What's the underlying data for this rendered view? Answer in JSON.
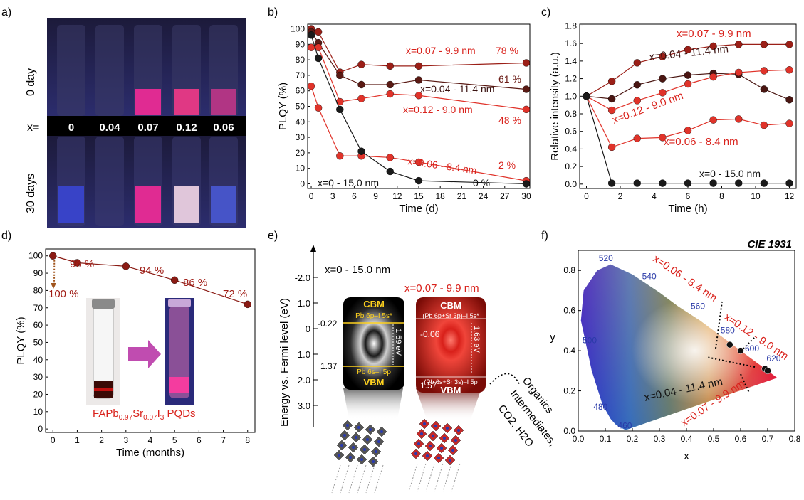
{
  "panels": {
    "a": "a)",
    "b": "b)",
    "c": "c)",
    "d": "d)",
    "e": "e)",
    "f": "f)"
  },
  "panel_a": {
    "row_top": "0 day",
    "row_bottom": "30 days",
    "x_label": "x=",
    "x_values": [
      "0",
      "0.04",
      "0.07",
      "0.12",
      "0.06"
    ]
  },
  "chart_data": [
    {
      "id": "b",
      "type": "line",
      "xlabel": "Time (d)",
      "ylabel": "PLQY (%)",
      "xlim": [
        -0.5,
        30.5
      ],
      "ylim": [
        -3,
        103
      ],
      "xticks": [
        0,
        3,
        6,
        9,
        12,
        15,
        18,
        21,
        24,
        27,
        30
      ],
      "yticks": [
        0,
        10,
        20,
        30,
        40,
        50,
        60,
        70,
        80,
        90,
        100
      ],
      "series": [
        {
          "name": "x=0.07 - 9.9 nm",
          "color": "#9b1f17",
          "x": [
            0,
            1,
            4,
            7,
            11,
            15,
            30
          ],
          "y": [
            100,
            98,
            72,
            77,
            76,
            76,
            78
          ]
        },
        {
          "name": "x=0.04 - 11.4 nm",
          "color": "#5a1a14",
          "x": [
            0,
            1,
            4,
            7,
            11,
            15,
            30
          ],
          "y": [
            98,
            91,
            70,
            64,
            64,
            67,
            61
          ]
        },
        {
          "name": "x=0.12 - 9.0 nm",
          "color": "#e0332a",
          "x": [
            0,
            1,
            4,
            7,
            11,
            15,
            30
          ],
          "y": [
            88,
            88,
            53,
            55,
            58,
            57,
            48
          ]
        },
        {
          "name": "x=0.06 - 8.4 nm",
          "color": "#e0332a",
          "x": [
            0,
            1,
            4,
            7,
            11,
            15,
            30
          ],
          "y": [
            63,
            49,
            18,
            18,
            17,
            14,
            2
          ]
        },
        {
          "name": "x=0 - 15.0 nm",
          "color": "#1a1a1a",
          "x": [
            0,
            1,
            4,
            7,
            11,
            15,
            30
          ],
          "y": [
            96,
            81,
            48,
            21,
            8,
            2,
            0
          ]
        }
      ],
      "annotations": [
        {
          "text": "x=0.07 - 9.9 nm",
          "color": "#d9221c"
        },
        {
          "text": "78 %",
          "color": "#d9221c"
        },
        {
          "text": "61 %",
          "color": "#6a1a14"
        },
        {
          "text": "x=0.04 - 11.4 nm",
          "color": "#3a1210"
        },
        {
          "text": "x=0.12 - 9.0 nm",
          "color": "#d9221c"
        },
        {
          "text": "48 %",
          "color": "#d9221c"
        },
        {
          "text": "x=0.06 - 8.4 nm",
          "color": "#d9221c"
        },
        {
          "text": "2 %",
          "color": "#d9221c"
        },
        {
          "text": "x=0 - 15.0 nm",
          "color": "#111111"
        },
        {
          "text": "0 %",
          "color": "#111111"
        }
      ]
    },
    {
      "id": "c",
      "type": "line",
      "xlabel": "Time (h)",
      "ylabel": "Relative intensity (a.u.)",
      "xlim": [
        -0.4,
        12.4
      ],
      "ylim": [
        -0.05,
        1.82
      ],
      "xticks": [
        0,
        2,
        4,
        6,
        8,
        10,
        12
      ],
      "yticks": [
        0.0,
        0.2,
        0.4,
        0.6,
        0.8,
        1.0,
        1.2,
        1.4,
        1.6,
        1.8
      ],
      "series": [
        {
          "name": "x=0.07 - 9.9 nm",
          "color": "#9b1f17",
          "x": [
            0,
            1.5,
            3,
            4.5,
            6,
            7.5,
            9,
            10.5,
            12
          ],
          "y": [
            1.0,
            1.17,
            1.38,
            1.45,
            1.53,
            1.57,
            1.59,
            1.59,
            1.59
          ]
        },
        {
          "name": "x=0.04 - 11.4 nm",
          "color": "#4a1612",
          "x": [
            0,
            1.5,
            3,
            4.5,
            6,
            7.5,
            9,
            10.5,
            12
          ],
          "y": [
            1.0,
            0.97,
            1.13,
            1.2,
            1.24,
            1.26,
            1.25,
            1.08,
            0.96
          ]
        },
        {
          "name": "x=0.12 - 9.0 nm",
          "color": "#e0332a",
          "x": [
            0,
            1.5,
            3,
            4.5,
            6,
            7.5,
            9,
            10.5,
            12
          ],
          "y": [
            1.0,
            0.84,
            0.95,
            1.04,
            1.14,
            1.22,
            1.27,
            1.29,
            1.3
          ]
        },
        {
          "name": "x=0.06 - 8.4 nm",
          "color": "#e0332a",
          "x": [
            0,
            1.5,
            3,
            4.5,
            6,
            7.5,
            9,
            10.5,
            12
          ],
          "y": [
            1.0,
            0.42,
            0.52,
            0.53,
            0.61,
            0.73,
            0.74,
            0.67,
            0.69
          ]
        },
        {
          "name": "x=0 - 15.0 nm",
          "color": "#1a1a1a",
          "x": [
            0,
            1.5,
            3,
            4.5,
            6,
            7.5,
            9,
            10.5,
            12
          ],
          "y": [
            1.0,
            0.01,
            0.01,
            0.01,
            0.01,
            0.01,
            0.01,
            0.01,
            0.01
          ]
        }
      ],
      "annotations": [
        {
          "text": "x=0.07 - 9.9 nm",
          "color": "#d9221c"
        },
        {
          "text": "x=0.04 - 11.4 nm",
          "color": "#3a1210"
        },
        {
          "text": "x=0.12 - 9.0 nm",
          "color": "#d9221c"
        },
        {
          "text": "x=0.06 - 8.4 nm",
          "color": "#d9221c"
        },
        {
          "text": "x=0 - 15.0 nm",
          "color": "#111111"
        }
      ]
    },
    {
      "id": "d",
      "type": "line",
      "xlabel": "Time (months)",
      "ylabel": "PLQY (%)",
      "xlim": [
        -0.3,
        8.3
      ],
      "ylim": [
        -2,
        104
      ],
      "xticks": [
        0,
        1,
        2,
        3,
        4,
        5,
        6,
        7,
        8
      ],
      "yticks": [
        0,
        10,
        20,
        30,
        40,
        50,
        60,
        70,
        80,
        90,
        100
      ],
      "series": [
        {
          "name": "",
          "color": "#8a1b14",
          "x": [
            0,
            1,
            3,
            5,
            8
          ],
          "y": [
            100,
            96,
            94,
            86,
            72
          ]
        }
      ],
      "annotations": [
        {
          "text": "100 %",
          "color": "#a01d16"
        },
        {
          "text": "96 %",
          "color": "#a01d16"
        },
        {
          "text": "94 %",
          "color": "#a01d16"
        },
        {
          "text": "86 %",
          "color": "#a01d16"
        },
        {
          "text": "72 %",
          "color": "#a01d16"
        }
      ],
      "inset_label": "FAPb0.97Sr0.07I3 PQDs"
    },
    {
      "id": "f",
      "type": "scatter",
      "title": "CIE 1931",
      "xlabel": "x",
      "ylabel": "y",
      "xlim": [
        0,
        0.8
      ],
      "ylim": [
        0,
        0.9
      ],
      "xticks": [
        0.0,
        0.1,
        0.2,
        0.3,
        0.4,
        0.5,
        0.6,
        0.7,
        0.8
      ],
      "yticks": [
        0.0,
        0.2,
        0.4,
        0.6,
        0.8
      ],
      "wavelengths": [
        "460",
        "480",
        "500",
        "520",
        "540",
        "560",
        "580",
        "600",
        "620"
      ],
      "points": [
        {
          "name": "x=0.06 - 8.4 nm",
          "x": 0.56,
          "y": 0.43
        },
        {
          "name": "x=0.12 - 9.0 nm",
          "x": 0.6,
          "y": 0.4
        },
        {
          "name": "x=0.07 - 9.9 nm",
          "x": 0.69,
          "y": 0.31
        },
        {
          "name": "x=0.04 - 11.4 nm",
          "x": 0.7,
          "y": 0.3
        }
      ],
      "annotations": [
        {
          "text": "x=0.06 - 8.4 nm",
          "color": "#d9221c"
        },
        {
          "text": "x=0.12 - 9.0 nm",
          "color": "#d9221c"
        },
        {
          "text": "x=0.04 - 11.4 nm",
          "color": "#111111"
        },
        {
          "text": "x=0.07 - 9.9 nm",
          "color": "#d9221c"
        }
      ]
    }
  ],
  "panel_e": {
    "ylabel": "Energy vs. Fermi level (eV)",
    "yticks": [
      "-2.0",
      "-1.0",
      "0",
      "1.0",
      "2.0",
      "3.0"
    ],
    "left_title": "x=0 - 15.0 nm",
    "right_title": "x=0.07 - 9.9 nm",
    "left_cbm": "CBM",
    "left_cbm_orbital": "Pb 6p–I 5s*",
    "left_vbm": "VBM",
    "left_vbm_orbital": "Pb 6s–I 5p",
    "left_gap": "1.59 eV",
    "left_cbm_val": "-0.22",
    "left_vbm_val": "1.37",
    "right_cbm": "CBM",
    "right_cbm_orbital": "(Pb 6p+Sr 3p)–I 5s*",
    "right_vbm": "VBM",
    "right_vbm_orbital": "(Pb 6s+Sr 3s)–I 5p",
    "right_gap": "1.63 eV",
    "right_cbm_val": "-0.06",
    "right_vbm_val": "1.57",
    "species": [
      "Organics",
      "Intermediates,",
      "CO2, H2O"
    ]
  }
}
